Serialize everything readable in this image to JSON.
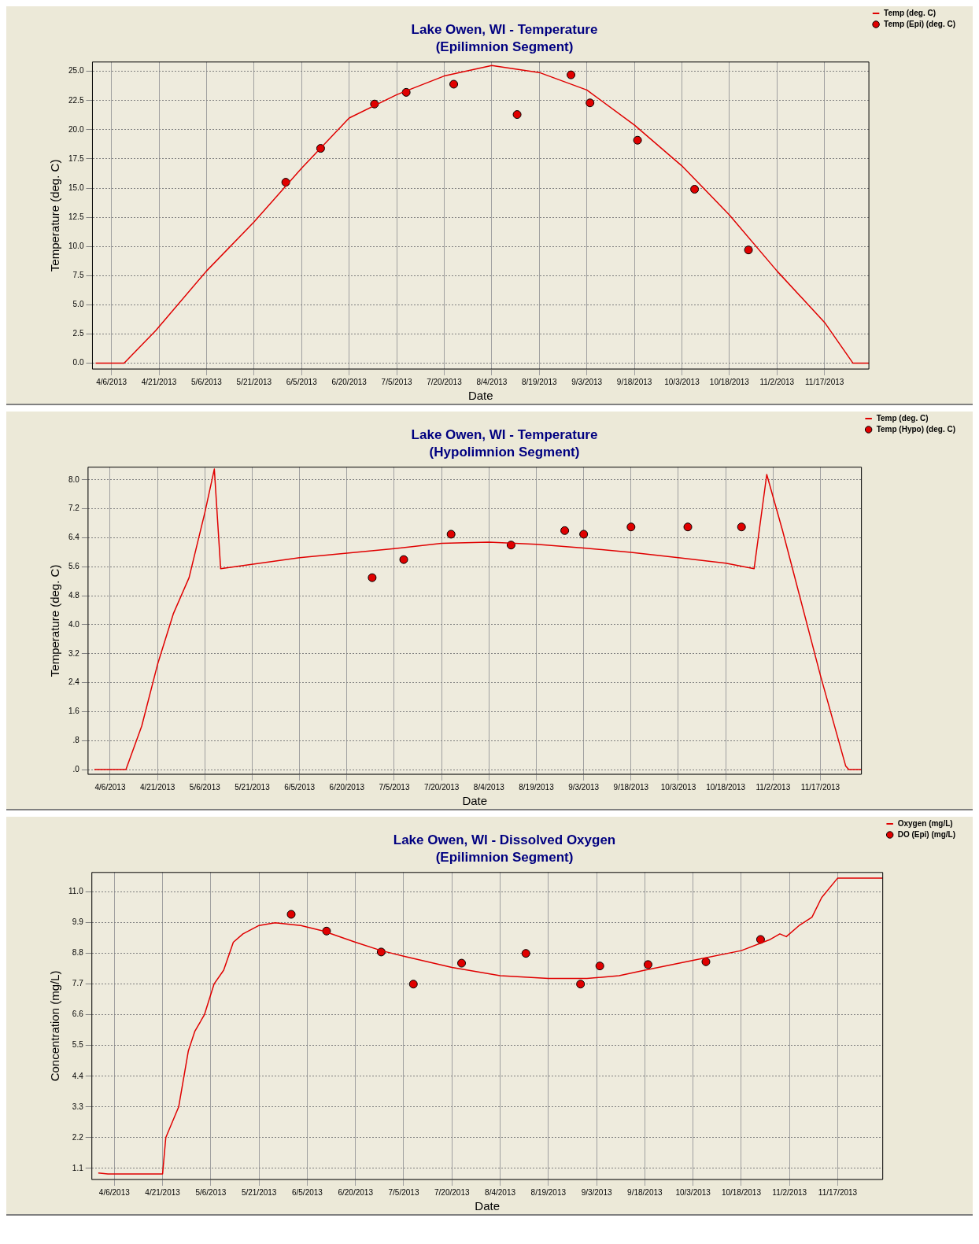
{
  "chart_data": [
    {
      "type": "line",
      "title": "Lake Owen, WI - Temperature",
      "subtitle": "(Epilimnion Segment)",
      "xlabel": "Date",
      "ylabel": "Temperature (deg. C)",
      "legend": "top right",
      "grid": true,
      "xlim": [
        "2013-03-31",
        "2013-12-01"
      ],
      "xticks": [
        {
          "value": "2013-04-06",
          "label": "4/6/2013"
        },
        {
          "value": "2013-04-21",
          "label": "4/21/2013"
        },
        {
          "value": "2013-05-06",
          "label": "5/6/2013"
        },
        {
          "value": "2013-05-21",
          "label": "5/21/2013"
        },
        {
          "value": "2013-06-05",
          "label": "6/5/2013"
        },
        {
          "value": "2013-06-20",
          "label": "6/20/2013"
        },
        {
          "value": "2013-07-05",
          "label": "7/5/2013"
        },
        {
          "value": "2013-07-20",
          "label": "7/20/2013"
        },
        {
          "value": "2013-08-04",
          "label": "8/4/2013"
        },
        {
          "value": "2013-08-19",
          "label": "8/19/2013"
        },
        {
          "value": "2013-09-03",
          "label": "9/3/2013"
        },
        {
          "value": "2013-09-18",
          "label": "9/18/2013"
        },
        {
          "value": "2013-10-03",
          "label": "10/3/2013"
        },
        {
          "value": "2013-10-18",
          "label": "10/18/2013"
        },
        {
          "value": "2013-11-02",
          "label": "11/2/2013"
        },
        {
          "value": "2013-11-17",
          "label": "11/17/2013"
        }
      ],
      "ylim": [
        -0.5,
        25.8
      ],
      "yticks": [
        {
          "value": 0,
          "label": "0.0"
        },
        {
          "value": 2.5,
          "label": "2.5"
        },
        {
          "value": 5,
          "label": "5.0"
        },
        {
          "value": 7.5,
          "label": "7.5"
        },
        {
          "value": 10,
          "label": "10.0"
        },
        {
          "value": 12.5,
          "label": "12.5"
        },
        {
          "value": 15,
          "label": "15.0"
        },
        {
          "value": 17.5,
          "label": "17.5"
        },
        {
          "value": 20,
          "label": "20.0"
        },
        {
          "value": 22.5,
          "label": "22.5"
        },
        {
          "value": 25,
          "label": "25.0"
        }
      ],
      "series": [
        {
          "name": "Temp (deg. C)",
          "type": "line",
          "color": "#e00000",
          "marker": "none",
          "x": [
            "2013-04-01",
            "2013-04-10",
            "2013-04-20",
            "2013-05-06",
            "2013-05-21",
            "2013-06-05",
            "2013-06-20",
            "2013-07-05",
            "2013-07-20",
            "2013-08-04",
            "2013-08-19",
            "2013-09-03",
            "2013-09-18",
            "2013-10-03",
            "2013-10-18",
            "2013-11-02",
            "2013-11-17",
            "2013-11-26",
            "2013-12-01"
          ],
          "values": [
            0,
            0,
            2.8,
            7.9,
            12.1,
            16.7,
            21.0,
            23.0,
            24.6,
            25.5,
            24.9,
            23.4,
            20.4,
            16.9,
            12.7,
            7.9,
            3.5,
            0,
            0
          ]
        },
        {
          "name": "Temp (Epi) (deg. C)",
          "type": "scatter",
          "color": "#e00000",
          "marker": "circle",
          "x": [
            "2013-05-31",
            "2013-06-11",
            "2013-06-28",
            "2013-07-08",
            "2013-07-23",
            "2013-08-12",
            "2013-08-29",
            "2013-09-04",
            "2013-09-19",
            "2013-10-07",
            "2013-10-24"
          ],
          "values": [
            15.5,
            18.4,
            22.2,
            23.2,
            23.9,
            21.3,
            24.7,
            22.3,
            19.1,
            14.9,
            9.7
          ]
        }
      ]
    },
    {
      "type": "line",
      "title": "Lake Owen, WI - Temperature",
      "subtitle": "(Hypolimnion Segment)",
      "xlabel": "Date",
      "ylabel": "Temperature (deg. C)",
      "legend": "top right",
      "grid": true,
      "xlim": [
        "2013-03-30",
        "2013-11-30"
      ],
      "xticks": [
        {
          "value": "2013-04-06",
          "label": "4/6/2013"
        },
        {
          "value": "2013-04-21",
          "label": "4/21/2013"
        },
        {
          "value": "2013-05-06",
          "label": "5/6/2013"
        },
        {
          "value": "2013-05-21",
          "label": "5/21/2013"
        },
        {
          "value": "2013-06-05",
          "label": "6/5/2013"
        },
        {
          "value": "2013-06-20",
          "label": "6/20/2013"
        },
        {
          "value": "2013-07-05",
          "label": "7/5/2013"
        },
        {
          "value": "2013-07-20",
          "label": "7/20/2013"
        },
        {
          "value": "2013-08-04",
          "label": "8/4/2013"
        },
        {
          "value": "2013-08-19",
          "label": "8/19/2013"
        },
        {
          "value": "2013-09-03",
          "label": "9/3/2013"
        },
        {
          "value": "2013-09-18",
          "label": "9/18/2013"
        },
        {
          "value": "2013-10-03",
          "label": "10/3/2013"
        },
        {
          "value": "2013-10-18",
          "label": "10/18/2013"
        },
        {
          "value": "2013-11-02",
          "label": "11/2/2013"
        },
        {
          "value": "2013-11-17",
          "label": "11/17/2013"
        }
      ],
      "ylim": [
        -0.13,
        8.35
      ],
      "yticks": [
        {
          "value": 0,
          "label": ".0"
        },
        {
          "value": 0.8,
          "label": ".8"
        },
        {
          "value": 1.6,
          "label": "1.6"
        },
        {
          "value": 2.4,
          "label": "2.4"
        },
        {
          "value": 3.2,
          "label": "3.2"
        },
        {
          "value": 4,
          "label": "4.0"
        },
        {
          "value": 4.8,
          "label": "4.8"
        },
        {
          "value": 5.6,
          "label": "5.6"
        },
        {
          "value": 6.4,
          "label": "6.4"
        },
        {
          "value": 7.2,
          "label": "7.2"
        },
        {
          "value": 8,
          "label": "8.0"
        }
      ],
      "series": [
        {
          "name": "Temp (deg. C)",
          "type": "line",
          "color": "#e00000",
          "marker": "none",
          "x": [
            "2013-04-01",
            "2013-04-11",
            "2013-04-16",
            "2013-04-21",
            "2013-04-26",
            "2013-05-01",
            "2013-05-06",
            "2013-05-09",
            "2013-05-11",
            "2013-06-05",
            "2013-07-05",
            "2013-07-20",
            "2013-08-04",
            "2013-08-19",
            "2013-09-03",
            "2013-09-18",
            "2013-10-03",
            "2013-10-18",
            "2013-10-27",
            "2013-10-31",
            "2013-11-05",
            "2013-11-17",
            "2013-11-25",
            "2013-11-26",
            "2013-11-30"
          ],
          "values": [
            0,
            0,
            1.2,
            2.9,
            4.3,
            5.3,
            7.1,
            8.3,
            5.55,
            5.85,
            6.1,
            6.25,
            6.28,
            6.22,
            6.12,
            6.0,
            5.85,
            5.7,
            5.55,
            8.15,
            6.6,
            2.6,
            0.1,
            0,
            0
          ]
        },
        {
          "name": "Temp (Hypo) (deg. C)",
          "type": "scatter",
          "color": "#e00000",
          "marker": "circle",
          "x": [
            "2013-06-28",
            "2013-07-08",
            "2013-07-23",
            "2013-08-11",
            "2013-08-28",
            "2013-09-03",
            "2013-09-18",
            "2013-10-06",
            "2013-10-23"
          ],
          "values": [
            5.3,
            5.8,
            6.5,
            6.2,
            6.6,
            6.5,
            6.7,
            6.7,
            6.7
          ]
        }
      ]
    },
    {
      "type": "line",
      "title": "Lake Owen, WI - Dissolved Oxygen",
      "subtitle": "(Epilimnion Segment)",
      "xlabel": "Date",
      "ylabel": "Concentration (mg/L)",
      "legend": "top right",
      "grid": true,
      "xlim": [
        "2013-03-30",
        "2013-12-01"
      ],
      "xticks": [
        {
          "value": "2013-04-06",
          "label": "4/6/2013"
        },
        {
          "value": "2013-04-21",
          "label": "4/21/2013"
        },
        {
          "value": "2013-05-06",
          "label": "5/6/2013"
        },
        {
          "value": "2013-05-21",
          "label": "5/21/2013"
        },
        {
          "value": "2013-06-05",
          "label": "6/5/2013"
        },
        {
          "value": "2013-06-20",
          "label": "6/20/2013"
        },
        {
          "value": "2013-07-05",
          "label": "7/5/2013"
        },
        {
          "value": "2013-07-20",
          "label": "7/20/2013"
        },
        {
          "value": "2013-08-04",
          "label": "8/4/2013"
        },
        {
          "value": "2013-08-19",
          "label": "8/19/2013"
        },
        {
          "value": "2013-09-03",
          "label": "9/3/2013"
        },
        {
          "value": "2013-09-18",
          "label": "9/18/2013"
        },
        {
          "value": "2013-10-03",
          "label": "10/3/2013"
        },
        {
          "value": "2013-10-18",
          "label": "10/18/2013"
        },
        {
          "value": "2013-11-02",
          "label": "11/2/2013"
        },
        {
          "value": "2013-11-17",
          "label": "11/17/2013"
        }
      ],
      "ylim": [
        0.7,
        11.7
      ],
      "yticks": [
        1.1,
        2.2,
        3.3,
        4.4,
        5.5,
        6.6,
        7.7,
        8.8,
        9.9,
        {
          "value": 11,
          "label": "11.0"
        }
      ],
      "series": [
        {
          "name": "Oxygen (mg/L)",
          "type": "line",
          "color": "#e00000",
          "marker": "none",
          "x": [
            "2013-04-01",
            "2013-04-04",
            "2013-04-21",
            "2013-04-22",
            "2013-04-26",
            "2013-04-29",
            "2013-05-01",
            "2013-05-04",
            "2013-05-07",
            "2013-05-10",
            "2013-05-13",
            "2013-05-16",
            "2013-05-21",
            "2013-05-26",
            "2013-06-03",
            "2013-06-10",
            "2013-06-20",
            "2013-06-28",
            "2013-07-05",
            "2013-07-20",
            "2013-08-04",
            "2013-08-19",
            "2013-08-31",
            "2013-09-10",
            "2013-09-18",
            "2013-10-03",
            "2013-10-18",
            "2013-10-27",
            "2013-10-30",
            "2013-11-01",
            "2013-11-05",
            "2013-11-09",
            "2013-11-12",
            "2013-11-17",
            "2013-12-01"
          ],
          "values": [
            0.93,
            0.9,
            0.9,
            2.2,
            3.3,
            5.3,
            6.0,
            6.6,
            7.7,
            8.2,
            9.2,
            9.5,
            9.8,
            9.9,
            9.8,
            9.6,
            9.2,
            8.9,
            8.7,
            8.3,
            8.0,
            7.9,
            7.9,
            8.0,
            8.2,
            8.55,
            8.9,
            9.3,
            9.5,
            9.4,
            9.8,
            10.1,
            10.8,
            11.5,
            11.5
          ]
        },
        {
          "name": "DO (Epi) (mg/L)",
          "type": "scatter",
          "color": "#e00000",
          "marker": "circle",
          "x": [
            "2013-05-31",
            "2013-06-11",
            "2013-06-28",
            "2013-07-08",
            "2013-07-23",
            "2013-08-12",
            "2013-08-29",
            "2013-09-04",
            "2013-09-19",
            "2013-10-07",
            "2013-10-24"
          ],
          "values": [
            10.2,
            9.6,
            8.85,
            7.7,
            8.45,
            8.8,
            7.7,
            8.35,
            8.4,
            8.5,
            9.3
          ]
        }
      ]
    }
  ]
}
